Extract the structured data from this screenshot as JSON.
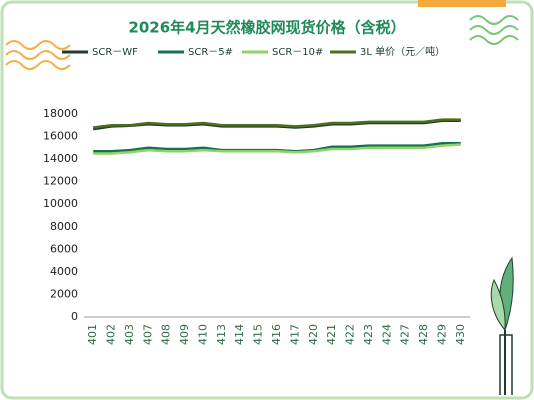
{
  "chart_data": {
    "type": "line",
    "title": "2026年4月天然橡胶网现货价格（含税）",
    "categories": [
      "401",
      "402",
      "403",
      "407",
      "408",
      "409",
      "410",
      "413",
      "414",
      "415",
      "416",
      "417",
      "420",
      "421",
      "422",
      "423",
      "424",
      "427",
      "428",
      "429",
      "430"
    ],
    "series": [
      {
        "name": "SCR－WF",
        "color": "#1f3d2b",
        "values": [
          16650,
          16900,
          16950,
          17100,
          17000,
          17000,
          17100,
          16900,
          16900,
          16900,
          16900,
          16800,
          16900,
          17100,
          17100,
          17200,
          17200,
          17200,
          17200,
          17400,
          17400
        ]
      },
      {
        "name": "SCR－5#",
        "color": "#17704f",
        "values": [
          14700,
          14700,
          14800,
          15000,
          14900,
          14900,
          15000,
          14800,
          14800,
          14800,
          14800,
          14700,
          14800,
          15100,
          15100,
          15200,
          15200,
          15200,
          15200,
          15400,
          15400
        ]
      },
      {
        "name": "SCR－10#",
        "color": "#8fd46a",
        "values": [
          14500,
          14500,
          14600,
          14800,
          14700,
          14700,
          14800,
          14700,
          14700,
          14700,
          14700,
          14600,
          14700,
          14900,
          14900,
          15000,
          15000,
          15000,
          15000,
          15200,
          15300
        ]
      },
      {
        "name": "3L 单价（元／吨）",
        "color": "#4d6e1e",
        "values": [
          16800,
          17000,
          17000,
          17200,
          17100,
          17100,
          17200,
          17000,
          17000,
          17000,
          17000,
          16900,
          17000,
          17200,
          17200,
          17300,
          17300,
          17300,
          17300,
          17500,
          17500
        ]
      }
    ],
    "ylim": [
      0,
      18000
    ],
    "yticks": [
      0,
      2000,
      4000,
      6000,
      8000,
      10000,
      12000,
      14000,
      16000,
      18000
    ],
    "grid": false
  }
}
